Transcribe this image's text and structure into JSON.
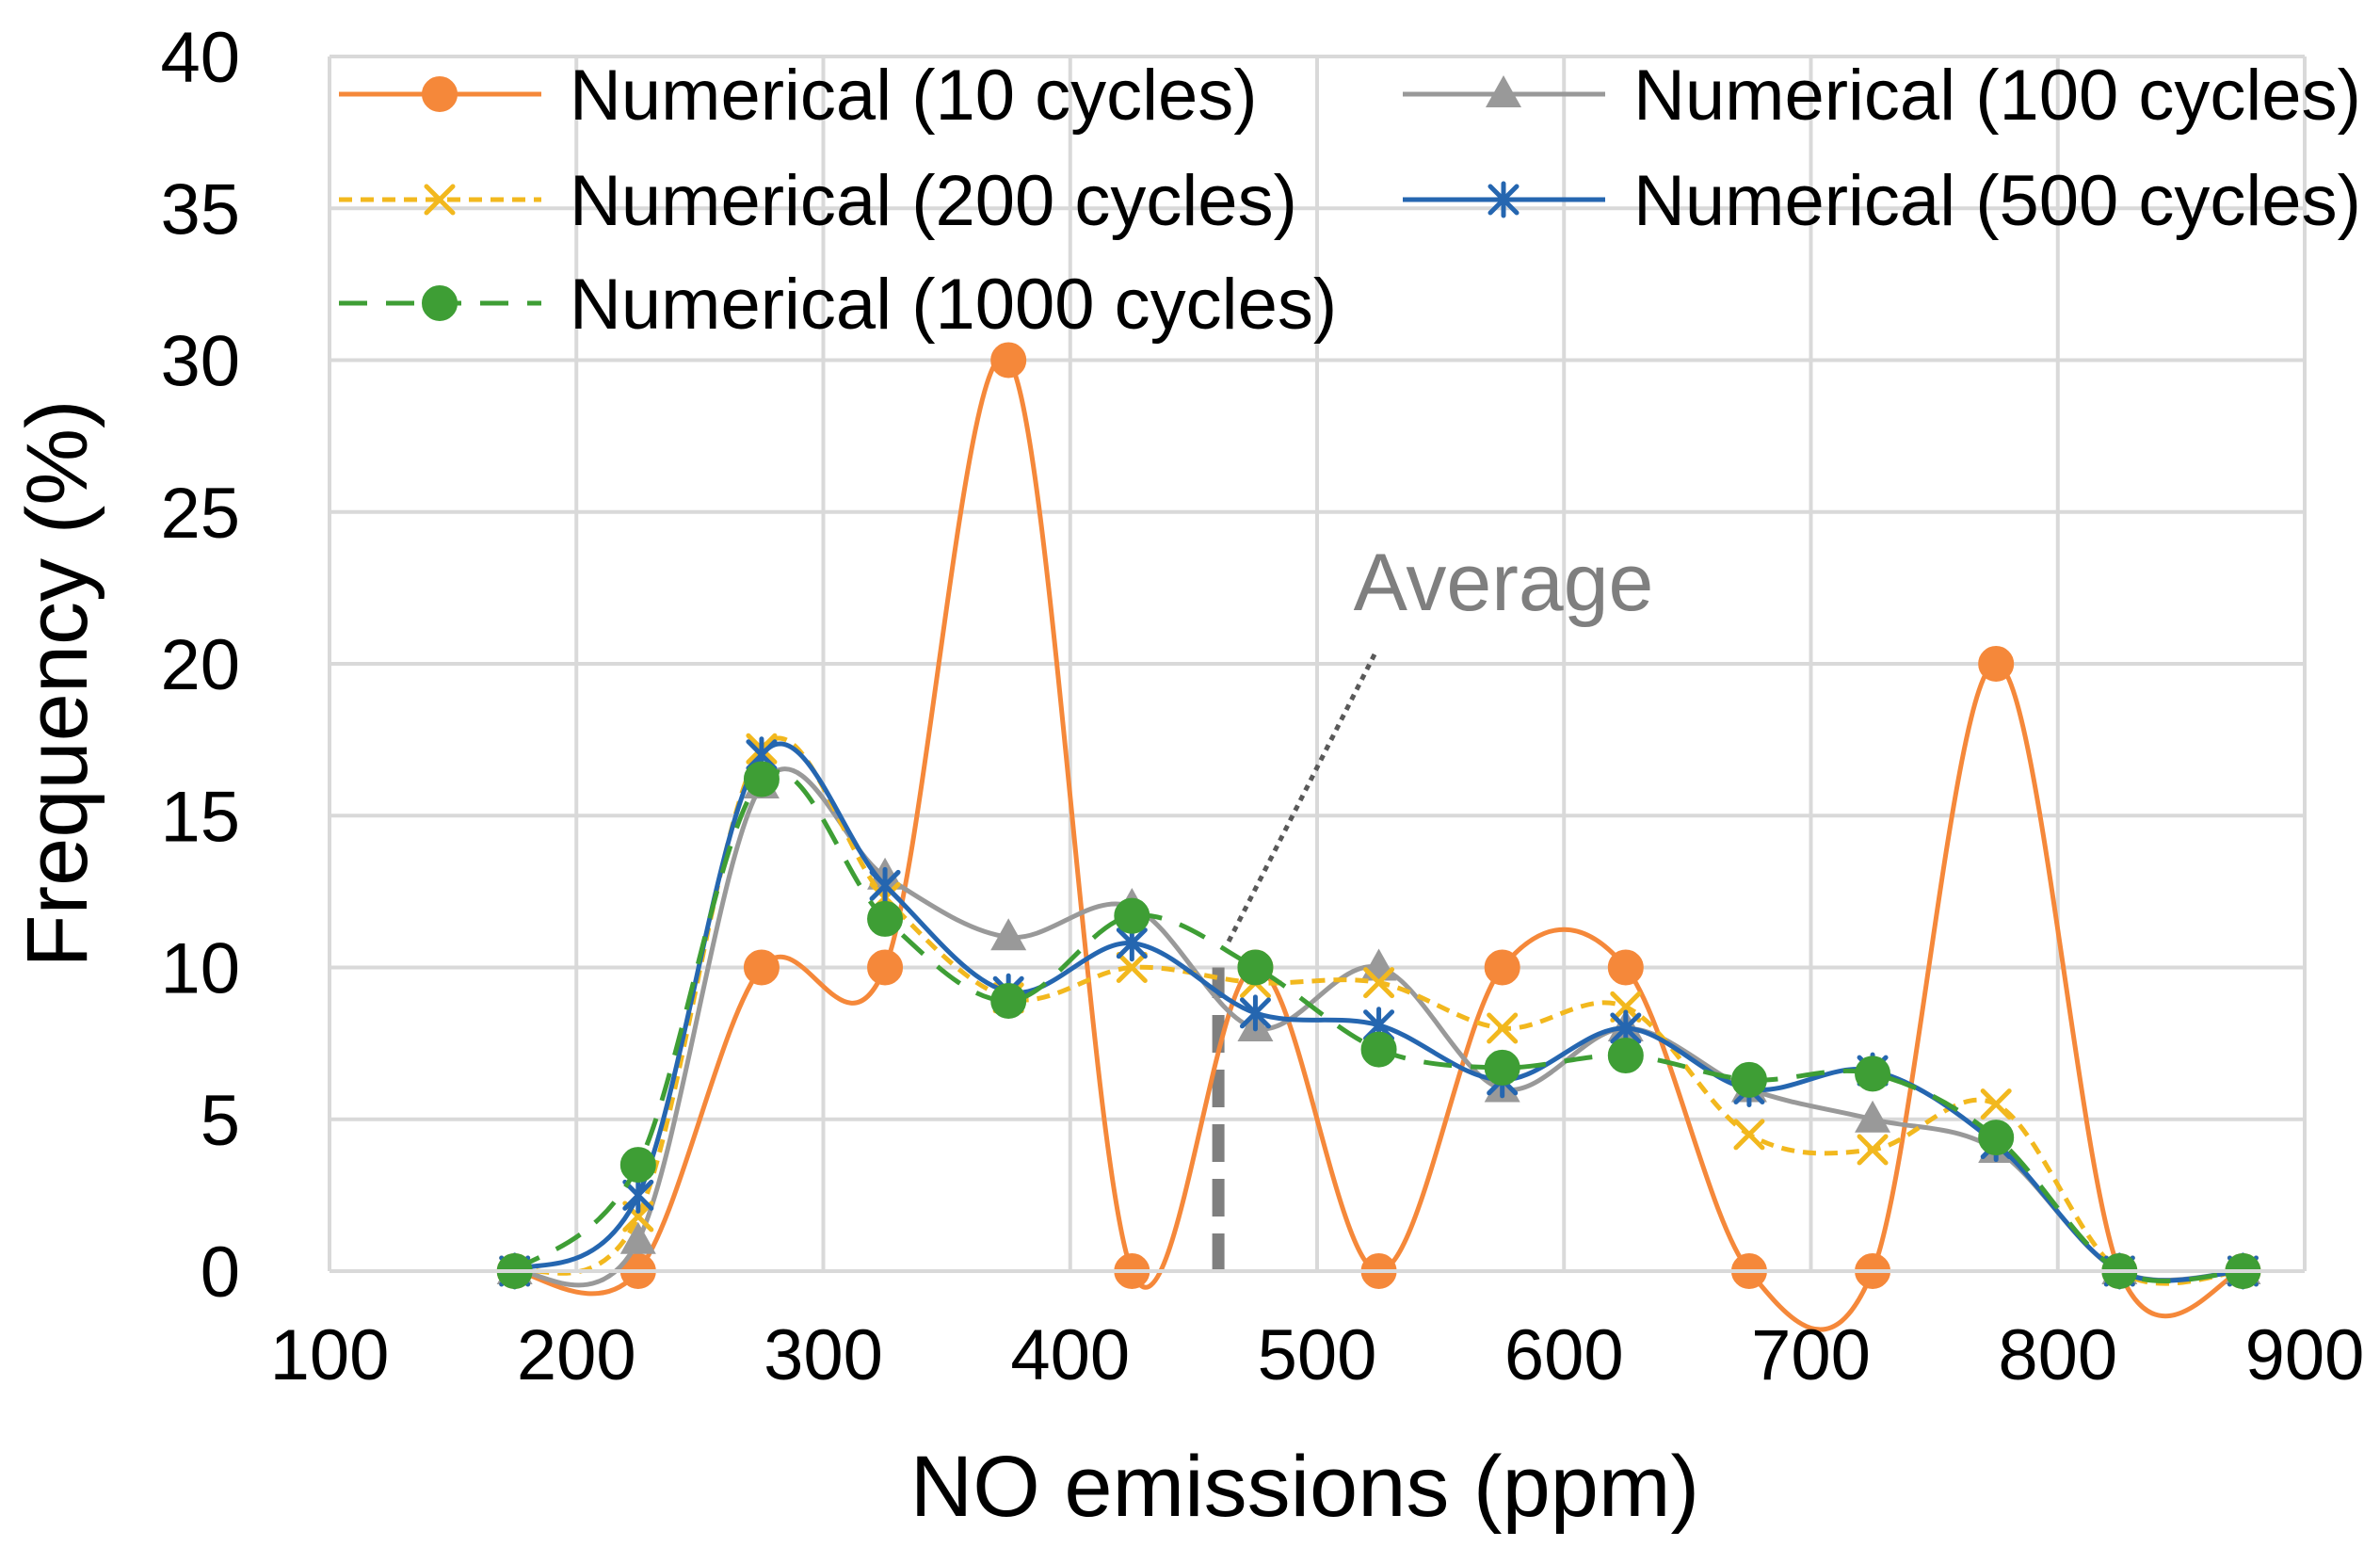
{
  "chart_data": {
    "type": "line",
    "title": "",
    "xlabel": "NO emissions (ppm)",
    "ylabel": "Frequency (%)",
    "xlim": [
      100,
      900
    ],
    "ylim": [
      0,
      40
    ],
    "xticks": [
      100,
      200,
      300,
      400,
      500,
      600,
      700,
      800,
      900
    ],
    "yticks": [
      0,
      5,
      10,
      15,
      20,
      25,
      30,
      35,
      40
    ],
    "grid": true,
    "legend_position": "top",
    "x": [
      175,
      225,
      275,
      325,
      375,
      425,
      475,
      525,
      575,
      625,
      675,
      725,
      775,
      825,
      875
    ],
    "series": [
      {
        "name": "Numerical (10 cycles)",
        "color": "#F5883A",
        "marker": "circle",
        "dash": "solid",
        "values": [
          0,
          0,
          10,
          10,
          30,
          0,
          10,
          0,
          10,
          10,
          0,
          0,
          20,
          0,
          0
        ]
      },
      {
        "name": "Numerical (100 cycles)",
        "color": "#999999",
        "marker": "triangle",
        "dash": "solid",
        "values": [
          0,
          1,
          16,
          13,
          11,
          12,
          8,
          10,
          6,
          8,
          6,
          5,
          4,
          0,
          0
        ]
      },
      {
        "name": "Numerical (200 cycles)",
        "color": "#F2B81E",
        "marker": "x",
        "dash": "dotted",
        "values": [
          0,
          1.8,
          17.2,
          12.3,
          9,
          10,
          9.5,
          9.5,
          8,
          8.7,
          4.5,
          4,
          5.5,
          0,
          0
        ]
      },
      {
        "name": "Numerical (500 cycles)",
        "color": "#2566B0",
        "marker": "star",
        "dash": "solid",
        "values": [
          0,
          2.5,
          17,
          12.7,
          9.2,
          10.8,
          8.5,
          8.1,
          6.3,
          8,
          6,
          6.6,
          4.2,
          0,
          0
        ]
      },
      {
        "name": "Numerical (1000 cycles)",
        "color": "#3E9E35",
        "marker": "circle",
        "dash": "dashed",
        "values": [
          0,
          3.5,
          16.2,
          11.6,
          8.9,
          11.7,
          10,
          7.3,
          6.7,
          7.1,
          6.3,
          6.5,
          4.4,
          0,
          0
        ]
      }
    ],
    "annotations": [
      {
        "text": "Average",
        "x": 460,
        "value": 10,
        "style": "dashed vertical line with dotted pointer"
      }
    ]
  }
}
